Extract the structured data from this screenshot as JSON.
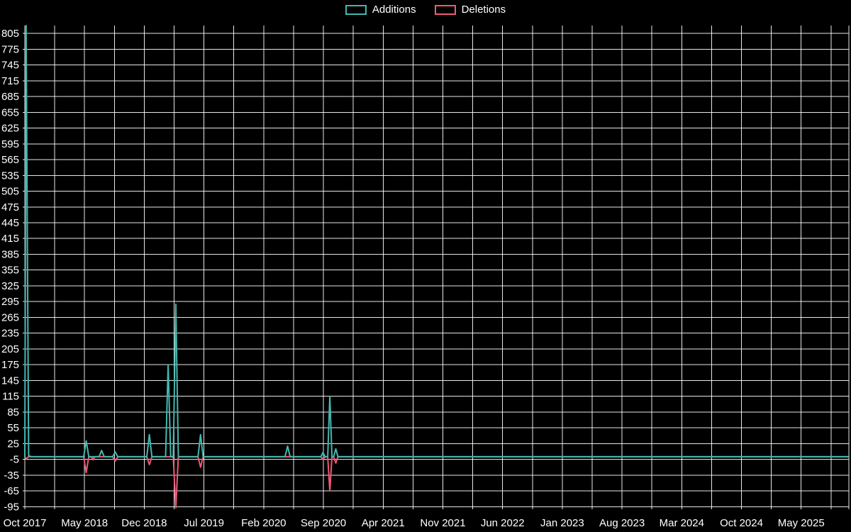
{
  "legend": {
    "items": [
      {
        "label": "Additions",
        "color": "#44b8b0"
      },
      {
        "label": "Deletions",
        "color": "#ef5a78"
      }
    ]
  },
  "chart_data": {
    "type": "line",
    "title": "",
    "xlabel": "",
    "ylabel": "",
    "background": "#000000",
    "grid": true,
    "grid_color": "#ffffff",
    "text_color": "#ffffff",
    "legend_position": "top-center",
    "ylim": [
      -100,
      820
    ],
    "y_ticks": [
      805,
      775,
      745,
      715,
      685,
      655,
      625,
      595,
      565,
      535,
      505,
      475,
      445,
      415,
      385,
      355,
      325,
      295,
      265,
      235,
      205,
      175,
      145,
      115,
      85,
      55,
      25,
      -5,
      -35,
      -65,
      -95
    ],
    "x_unit": "months_since_oct_2017",
    "x_tick_interval_months": 7,
    "x_minor_grid_interval_months": 3.5,
    "x_tick_labels": [
      "Oct 2017",
      "May 2018",
      "Dec 2018",
      "Jul 2019",
      "Feb 2020",
      "Sep 2020",
      "Apr 2021",
      "Nov 2021",
      "Jun 2022",
      "Jan 2023",
      "Aug 2023",
      "Mar 2024",
      "Oct 2024",
      "May 2025"
    ],
    "x_range_months": [
      0,
      96.6
    ],
    "series": [
      {
        "name": "Deletions",
        "color": "#ef5a78",
        "points": [
          [
            0,
            0
          ],
          [
            0.15,
            -4
          ],
          [
            0.45,
            0
          ],
          [
            6.9,
            0
          ],
          [
            7.2,
            -30
          ],
          [
            7.5,
            0
          ],
          [
            7.8,
            0
          ],
          [
            8.0,
            -6
          ],
          [
            8.2,
            0
          ],
          [
            10.3,
            0
          ],
          [
            10.6,
            -8
          ],
          [
            10.9,
            0
          ],
          [
            14.3,
            0
          ],
          [
            14.6,
            -15
          ],
          [
            14.9,
            0
          ],
          [
            17.4,
            0
          ],
          [
            17.7,
            -97
          ],
          [
            18.0,
            0
          ],
          [
            20.3,
            0
          ],
          [
            20.6,
            -20
          ],
          [
            20.9,
            0
          ],
          [
            34.7,
            0
          ],
          [
            34.95,
            -5
          ],
          [
            35.2,
            0
          ],
          [
            35.5,
            0
          ],
          [
            35.75,
            -65
          ],
          [
            36.0,
            0
          ],
          [
            36.2,
            0
          ],
          [
            36.45,
            -12
          ],
          [
            36.7,
            0
          ],
          [
            96.6,
            0
          ]
        ]
      },
      {
        "name": "Additions",
        "color": "#44b8b0",
        "points": [
          [
            0,
            0
          ],
          [
            0.15,
            820
          ],
          [
            0.45,
            2
          ],
          [
            0.8,
            0
          ],
          [
            6.9,
            0
          ],
          [
            7.2,
            30
          ],
          [
            7.5,
            0
          ],
          [
            8.7,
            0
          ],
          [
            9.0,
            12
          ],
          [
            9.3,
            0
          ],
          [
            10.3,
            0
          ],
          [
            10.6,
            9
          ],
          [
            10.9,
            0
          ],
          [
            14.3,
            0
          ],
          [
            14.6,
            42
          ],
          [
            14.9,
            0
          ],
          [
            16.5,
            0
          ],
          [
            16.8,
            175
          ],
          [
            17.1,
            0
          ],
          [
            17.4,
            0
          ],
          [
            17.7,
            290
          ],
          [
            18.0,
            0
          ],
          [
            20.3,
            0
          ],
          [
            20.6,
            42
          ],
          [
            20.9,
            0
          ],
          [
            30.5,
            0
          ],
          [
            30.8,
            20
          ],
          [
            31.1,
            0
          ],
          [
            34.7,
            0
          ],
          [
            34.95,
            8
          ],
          [
            35.2,
            0
          ],
          [
            35.5,
            0
          ],
          [
            35.75,
            115
          ],
          [
            36.0,
            0
          ],
          [
            36.2,
            0
          ],
          [
            36.45,
            15
          ],
          [
            36.7,
            0
          ],
          [
            96.6,
            0
          ]
        ]
      }
    ]
  }
}
